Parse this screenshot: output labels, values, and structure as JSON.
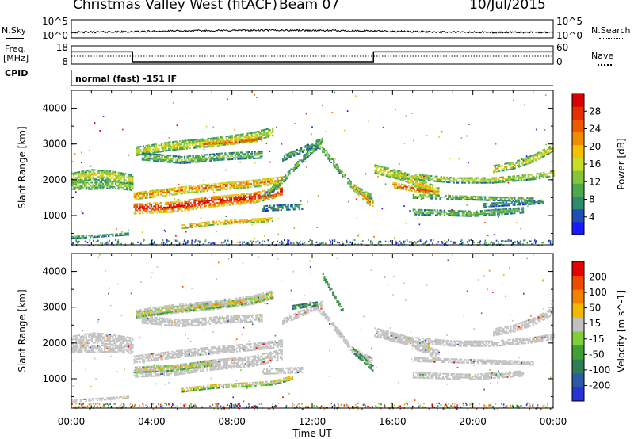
{
  "header": {
    "title_left": "Christmas Valley West (fitACF)",
    "title_beam": "Beam 07",
    "title_date": "10/Jul/2015"
  },
  "noise_panel": {
    "left_label": "N.Sky",
    "right_label": "N.Search",
    "left_ticks": [
      "10^5",
      "10^0"
    ],
    "right_ticks": [
      "10^5",
      "10^0"
    ]
  },
  "freq_panel": {
    "left_label_line1": "Freq.",
    "left_label_line2": "[MHz]",
    "right_label": "Nave",
    "left_ticks": [
      "18",
      "8"
    ],
    "right_ticks": [
      "60",
      "0"
    ],
    "freq_steps": [
      {
        "start_hour": 0,
        "end_hour": 3.05,
        "value": 14.8
      },
      {
        "start_hour": 3.05,
        "end_hour": 15.05,
        "value": 9.3
      },
      {
        "start_hour": 15.05,
        "end_hour": 24,
        "value": 14.8
      }
    ]
  },
  "cpid": {
    "label": "CPID",
    "text": "normal (fast) -151 IF"
  },
  "chart_data": [
    {
      "type": "heatmap",
      "panel": "power",
      "ylabel": "Slant Range [km]",
      "xlabel": "",
      "x_unit": "hours UT",
      "xlim": [
        0,
        24
      ],
      "ylim": [
        180,
        4500
      ],
      "y_ticks": [
        "4000",
        "3000",
        "2000",
        "1000"
      ],
      "y_tick_values": [
        4000,
        3000,
        2000,
        1000
      ],
      "colorbar": {
        "label": "Power [dB]",
        "ticks": [
          "28",
          "24",
          "20",
          "16",
          "12",
          "8",
          "4"
        ],
        "colors": [
          "#1a1aff",
          "#1e4fb5",
          "#2c8c6e",
          "#4fa84c",
          "#86c43a",
          "#c8dc2a",
          "#f5c000",
          "#f08c00",
          "#ef5a00",
          "#e52e00",
          "#d80000"
        ]
      },
      "echo_bands": [
        {
          "points": [
            [
              0,
              2050
            ],
            [
              1,
              2150
            ],
            [
              2,
              2100
            ],
            [
              3.05,
              2000
            ]
          ],
          "width": 280,
          "level": 0.55
        },
        {
          "points": [
            [
              0,
              1850
            ],
            [
              1,
              1850
            ],
            [
              2,
              1870
            ],
            [
              3.05,
              1820
            ]
          ],
          "width": 220,
          "level": 0.45
        },
        {
          "points": [
            [
              3.1,
              1200
            ],
            [
              5,
              1250
            ],
            [
              7,
              1400
            ],
            [
              9,
              1500
            ],
            [
              10.5,
              1700
            ]
          ],
          "width": 300,
          "level": 0.97
        },
        {
          "points": [
            [
              3.1,
              1550
            ],
            [
              6,
              1750
            ],
            [
              9,
              1900
            ],
            [
              10.5,
              2000
            ]
          ],
          "width": 200,
          "level": 0.78
        },
        {
          "points": [
            [
              3.2,
              2800
            ],
            [
              5,
              2950
            ],
            [
              7,
              3050
            ],
            [
              9,
              3200
            ],
            [
              10,
              3350
            ]
          ],
          "width": 230,
          "level": 0.55
        },
        {
          "points": [
            [
              6.5,
              3000
            ],
            [
              8,
              3050
            ],
            [
              9.5,
              3150
            ]
          ],
          "width": 110,
          "level": 0.9
        },
        {
          "points": [
            [
              3.5,
              2650
            ],
            [
              5.5,
              2550
            ],
            [
              7.5,
              2650
            ],
            [
              9.5,
              2700
            ]
          ],
          "width": 180,
          "level": 0.42
        },
        {
          "points": [
            [
              5.5,
              700
            ],
            [
              7,
              800
            ],
            [
              8.5,
              850
            ],
            [
              10,
              900
            ]
          ],
          "width": 120,
          "level": 0.72
        },
        {
          "points": [
            [
              9.5,
              1500
            ],
            [
              10.5,
              2000
            ],
            [
              11.5,
              2600
            ],
            [
              12.3,
              3000
            ]
          ],
          "width": 160,
          "level": 0.4
        },
        {
          "points": [
            [
              10.5,
              2600
            ],
            [
              11.5,
              2850
            ],
            [
              12.5,
              3100
            ]
          ],
          "width": 140,
          "level": 0.35
        },
        {
          "points": [
            [
              12.2,
              3050
            ],
            [
              13,
              2500
            ],
            [
              14,
              1800
            ],
            [
              15,
              1500
            ]
          ],
          "width": 170,
          "level": 0.42
        },
        {
          "points": [
            [
              14,
              1800
            ],
            [
              15,
              1300
            ]
          ],
          "width": 180,
          "level": 0.75
        },
        {
          "points": [
            [
              15.1,
              2300
            ],
            [
              16.5,
              2100
            ],
            [
              18.3,
              1650
            ]
          ],
          "width": 230,
          "level": 0.62
        },
        {
          "points": [
            [
              16,
              1850
            ],
            [
              17,
              1750
            ],
            [
              18,
              1650
            ]
          ],
          "width": 140,
          "level": 0.9
        },
        {
          "points": [
            [
              16,
              2150
            ],
            [
              19,
              2000
            ],
            [
              21,
              2000
            ],
            [
              23,
              2100
            ],
            [
              24,
              2200
            ]
          ],
          "width": 170,
          "level": 0.5
        },
        {
          "points": [
            [
              17,
              1550
            ],
            [
              20,
              1500
            ],
            [
              23,
              1450
            ]
          ],
          "width": 120,
          "level": 0.42
        },
        {
          "points": [
            [
              17,
              1100
            ],
            [
              20,
              1050
            ],
            [
              22.5,
              1150
            ]
          ],
          "width": 140,
          "level": 0.4
        },
        {
          "points": [
            [
              21,
              2300
            ],
            [
              22,
              2400
            ],
            [
              23,
              2600
            ],
            [
              24,
              2900
            ]
          ],
          "width": 180,
          "level": 0.58
        },
        {
          "points": [
            [
              0,
              400
            ],
            [
              1.5,
              450
            ],
            [
              2.8,
              500
            ]
          ],
          "width": 80,
          "level": 0.32
        },
        {
          "points": [
            [
              9.5,
              1200
            ],
            [
              11.5,
              1250
            ]
          ],
          "width": 140,
          "level": 0.3
        },
        {
          "points": [
            [
              20.5,
              1300
            ],
            [
              23.5,
              1400
            ]
          ],
          "width": 120,
          "level": 0.3
        }
      ],
      "ground_scatter_bands": []
    },
    {
      "type": "heatmap",
      "panel": "velocity",
      "ylabel": "Slant Range [km]",
      "xlabel": "Time UT",
      "x_unit": "hours UT",
      "xlim": [
        0,
        24
      ],
      "ylim": [
        180,
        4500
      ],
      "x_ticks": [
        "00:00",
        "04:00",
        "08:00",
        "12:00",
        "16:00",
        "20:00",
        "00:00"
      ],
      "x_tick_values": [
        0,
        4,
        8,
        12,
        16,
        20,
        24
      ],
      "y_ticks": [
        "4000",
        "3000",
        "2000",
        "1000"
      ],
      "y_tick_values": [
        4000,
        3000,
        2000,
        1000
      ],
      "colorbar": {
        "label": "Velocity [m s^-1]",
        "ticks": [
          "200",
          "100",
          "50",
          "15",
          "-15",
          "-50",
          "-100",
          "-200"
        ],
        "colors": [
          "#2733d6",
          "#2d5aa6",
          "#2f7d56",
          "#3fa035",
          "#7ed03a",
          "#c0c0c0",
          "#f2b800",
          "#f08200",
          "#ef4a00",
          "#e80000"
        ]
      },
      "echo_bands": [
        {
          "points": [
            [
              0,
              2050
            ],
            [
              1,
              2150
            ],
            [
              2,
              2100
            ],
            [
              3.05,
              2000
            ]
          ],
          "width": 280,
          "level": 0.5
        },
        {
          "points": [
            [
              0,
              1850
            ],
            [
              1,
              1850
            ],
            [
              2,
              1870
            ],
            [
              3.05,
              1820
            ]
          ],
          "width": 220,
          "level": 0.5
        },
        {
          "points": [
            [
              3.1,
              1200
            ],
            [
              5,
              1250
            ],
            [
              7,
              1400
            ],
            [
              9,
              1500
            ],
            [
              10.5,
              1700
            ]
          ],
          "width": 300,
          "level": 0.5
        },
        {
          "points": [
            [
              3.1,
              1550
            ],
            [
              6,
              1750
            ],
            [
              9,
              1900
            ],
            [
              10.5,
              2000
            ]
          ],
          "width": 200,
          "level": 0.5
        },
        {
          "points": [
            [
              3.2,
              2800
            ],
            [
              5,
              2950
            ],
            [
              7,
              3050
            ],
            [
              9,
              3200
            ],
            [
              10,
              3350
            ]
          ],
          "width": 230,
          "level": 0.5
        },
        {
          "points": [
            [
              3.5,
              2650
            ],
            [
              5.5,
              2550
            ],
            [
              7.5,
              2650
            ],
            [
              9.5,
              2700
            ]
          ],
          "width": 180,
          "level": 0.5
        },
        {
          "points": [
            [
              15.1,
              2300
            ],
            [
              16.5,
              2100
            ],
            [
              18.3,
              1650
            ]
          ],
          "width": 230,
          "level": 0.5
        },
        {
          "points": [
            [
              16,
              2150
            ],
            [
              19,
              2000
            ],
            [
              21,
              2000
            ],
            [
              23,
              2100
            ],
            [
              24,
              2200
            ]
          ],
          "width": 170,
          "level": 0.5
        },
        {
          "points": [
            [
              17,
              1550
            ],
            [
              20,
              1500
            ],
            [
              23,
              1450
            ]
          ],
          "width": 120,
          "level": 0.5
        },
        {
          "points": [
            [
              17,
              1100
            ],
            [
              20,
              1050
            ],
            [
              22.5,
              1150
            ]
          ],
          "width": 140,
          "level": 0.5
        },
        {
          "points": [
            [
              21,
              2300
            ],
            [
              22,
              2400
            ],
            [
              23,
              2600
            ],
            [
              24,
              2900
            ]
          ],
          "width": 180,
          "level": 0.5
        },
        {
          "points": [
            [
              10.5,
              2600
            ],
            [
              11.5,
              2850
            ],
            [
              12.5,
              3100
            ]
          ],
          "width": 140,
          "level": 0.5
        },
        {
          "points": [
            [
              12.2,
              3050
            ],
            [
              13,
              2500
            ],
            [
              14,
              1800
            ],
            [
              15,
              1500
            ]
          ],
          "width": 170,
          "level": 0.5
        },
        {
          "points": [
            [
              0,
              400
            ],
            [
              1.5,
              450
            ],
            [
              2.8,
              500
            ]
          ],
          "width": 80,
          "level": 0.5
        },
        {
          "points": [
            [
              9.5,
              1200
            ],
            [
              11.5,
              1250
            ]
          ],
          "width": 140,
          "level": 0.5
        }
      ],
      "colored_bands": [
        {
          "points": [
            [
              3.2,
              2800
            ],
            [
              5,
              2950
            ],
            [
              7,
              3050
            ],
            [
              9,
              3200
            ],
            [
              10,
              3350
            ]
          ],
          "width": 160,
          "level": 0.68
        },
        {
          "points": [
            [
              3.1,
              1250
            ],
            [
              5,
              1300
            ],
            [
              7,
              1450
            ]
          ],
          "width": 150,
          "level": 0.68
        },
        {
          "points": [
            [
              5.5,
              700
            ],
            [
              7,
              800
            ],
            [
              8.5,
              850
            ],
            [
              10,
              900
            ],
            [
              11,
              1050
            ]
          ],
          "width": 130,
          "level": 0.68
        },
        {
          "points": [
            [
              12.5,
              3900
            ],
            [
              13.5,
              2900
            ]
          ],
          "width": 130,
          "level": 0.38
        },
        {
          "points": [
            [
              14,
              1800
            ],
            [
              15,
              1300
            ]
          ],
          "width": 160,
          "level": 0.38
        },
        {
          "points": [
            [
              11,
              3000
            ],
            [
              12.2,
              3100
            ]
          ],
          "width": 100,
          "level": 0.38
        }
      ]
    }
  ]
}
